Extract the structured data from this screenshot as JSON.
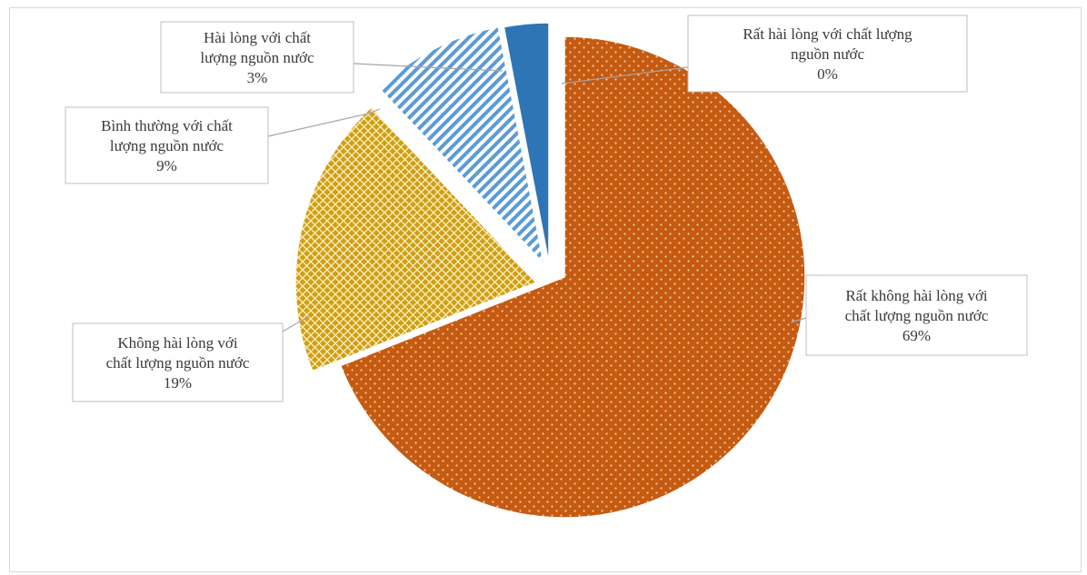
{
  "chart_data": {
    "type": "pie",
    "title": "",
    "exploded": true,
    "slices": [
      {
        "label_lines": [
          "Rất không hài lòng với",
          "chất lượng nguồn nước"
        ],
        "pct_label": "69%",
        "value": 69,
        "color": "#c55a11",
        "pattern": "dots",
        "legend": "Rất không hài lòng với chất lượng nguồn nước"
      },
      {
        "label_lines": [
          "Không hài lòng với",
          "chất lượng nguồn nước"
        ],
        "pct_label": "19%",
        "value": 19,
        "color": "#d4a017",
        "pattern": "crosshatch",
        "legend": "Không hài lòng với chất lượng nguồn nước"
      },
      {
        "label_lines": [
          "Bình thường với chất",
          "lượng nguồn nước"
        ],
        "pct_label": "9%",
        "value": 9,
        "color": "#5b9bd5",
        "pattern": "diagonal",
        "legend": "Bình thường với chất lượng nguồn nước"
      },
      {
        "label_lines": [
          "Hài lòng với chất",
          "lượng nguồn nước"
        ],
        "pct_label": "3%",
        "value": 3,
        "color": "#2e75b6",
        "pattern": "solid",
        "legend": "Hài lòng với chất lượng nguồn nước"
      },
      {
        "label_lines": [
          "Rất hài lòng với chất lượng",
          "nguồn nước"
        ],
        "pct_label": "0%",
        "value": 0,
        "color": "#1f4e79",
        "pattern": "solid",
        "legend": "Rất hài lòng với chất lượng nguồn nước"
      }
    ]
  }
}
